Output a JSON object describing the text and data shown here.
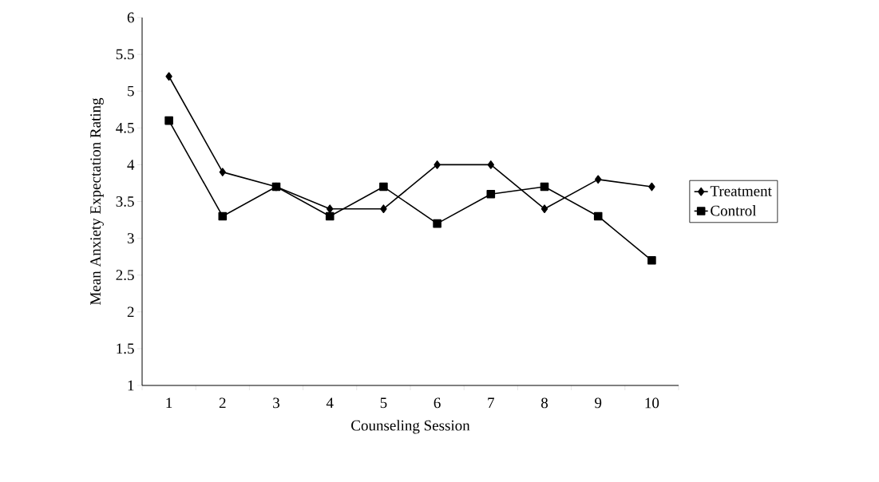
{
  "chart_data": {
    "type": "line",
    "xlabel": "Counseling Session",
    "ylabel": "Mean Anxiety Expectation Rating",
    "categories": [
      "1",
      "2",
      "3",
      "4",
      "5",
      "6",
      "7",
      "8",
      "9",
      "10"
    ],
    "series": [
      {
        "name": "Treatment",
        "color": "#000000",
        "marker": "diamond",
        "values": [
          5.2,
          3.9,
          3.7,
          3.4,
          3.4,
          4.0,
          4.0,
          3.4,
          3.8,
          3.7
        ]
      },
      {
        "name": "Control",
        "color": "#000000",
        "marker": "square",
        "values": [
          4.6,
          3.3,
          3.7,
          3.3,
          3.7,
          3.2,
          3.6,
          3.7,
          3.3,
          2.7
        ]
      }
    ],
    "ylim": [
      1,
      6
    ],
    "yticks": [
      1,
      1.5,
      2,
      2.5,
      3,
      3.5,
      4,
      4.5,
      5,
      5.5,
      6
    ],
    "grid": false,
    "legend": "right",
    "line_style": "solid"
  }
}
